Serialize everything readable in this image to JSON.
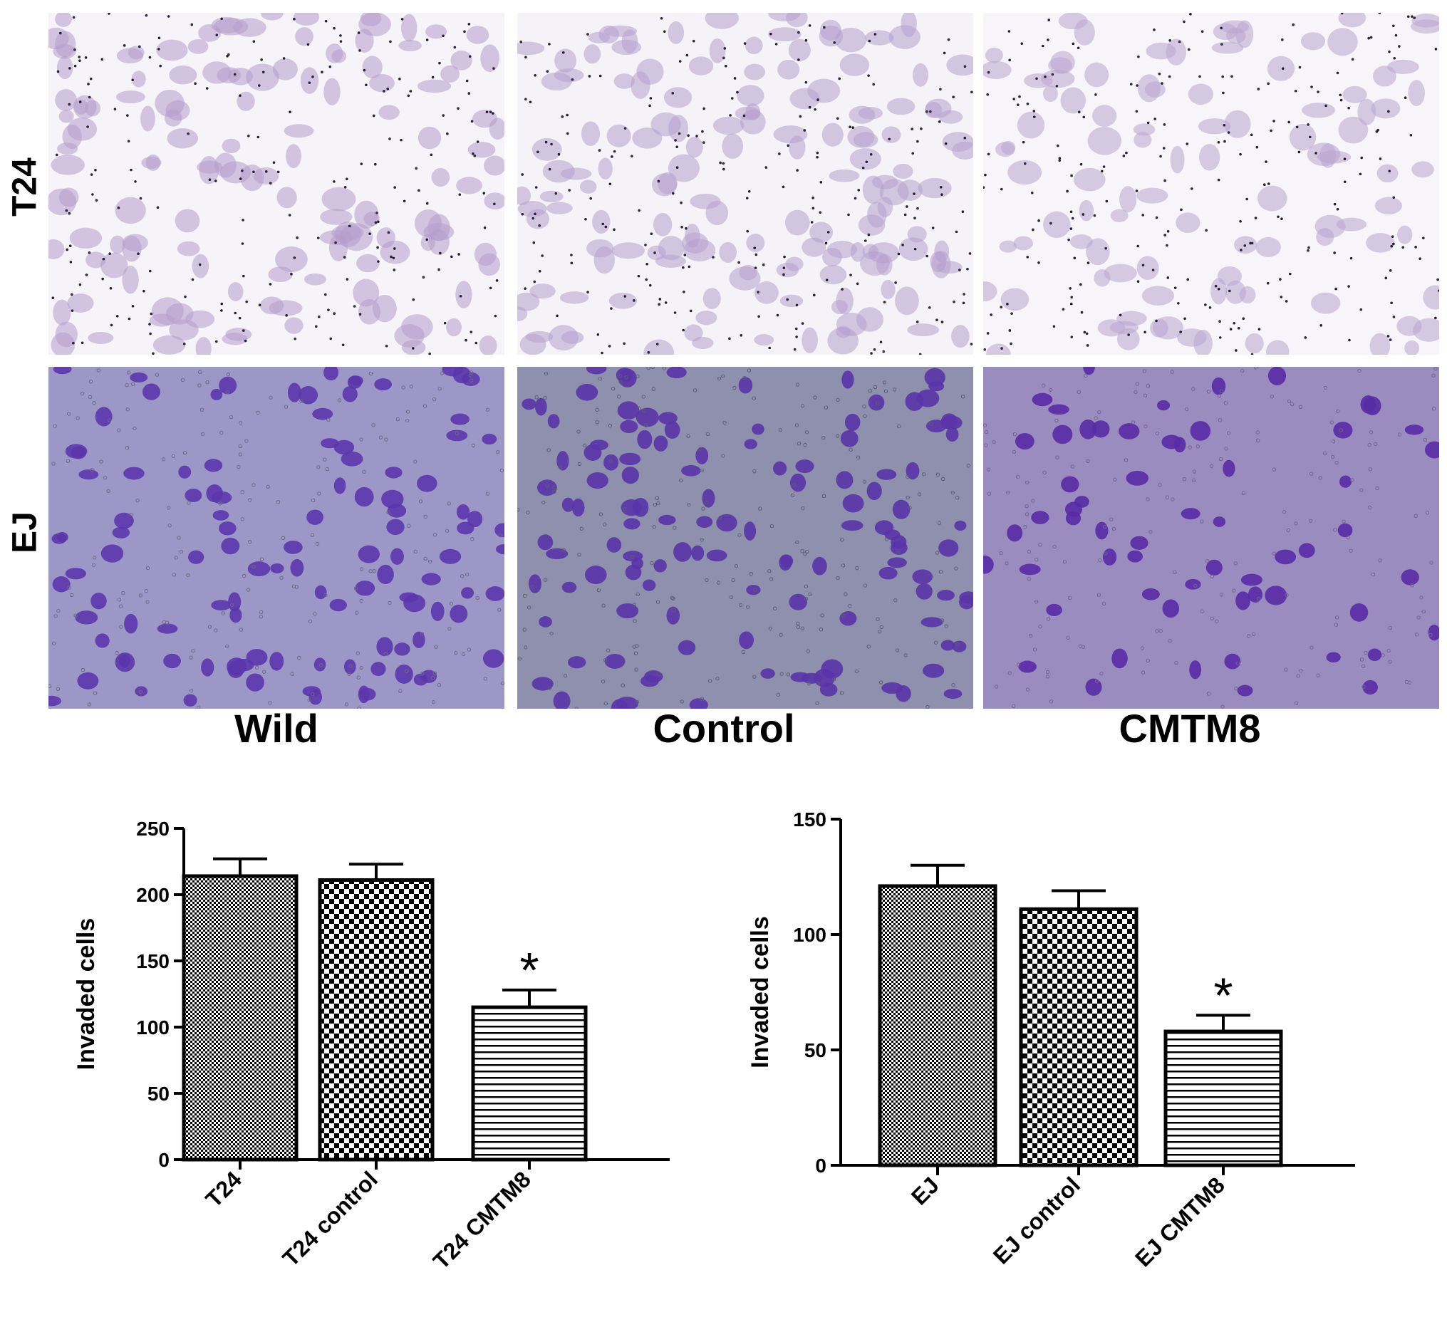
{
  "figure": {
    "row_labels": [
      "T24",
      "EJ"
    ],
    "col_labels": [
      "Wild",
      "Control",
      "CMTM8"
    ],
    "panels": [
      {
        "row": "T24",
        "col": "Wild",
        "bg": "#f6f4f8",
        "cell": "#b49ccc",
        "dot": "#2a2234",
        "cells": 140,
        "dots": 220
      },
      {
        "row": "T24",
        "col": "Control",
        "bg": "#f5f3f7",
        "cell": "#b59ecd",
        "dot": "#2a2234",
        "cells": 150,
        "dots": 230
      },
      {
        "row": "T24",
        "col": "CMTM8",
        "bg": "#f7f5f9",
        "cell": "#b9a4cf",
        "dot": "#2a2234",
        "cells": 100,
        "dots": 240
      },
      {
        "row": "EJ",
        "col": "Wild",
        "bg": "#9c97c6",
        "cell": "#5c36ac",
        "dot": "#6d6a86",
        "cells": 110,
        "dots": 200
      },
      {
        "row": "EJ",
        "col": "Control",
        "bg": "#8f90ad",
        "cell": "#5a34a8",
        "dot": "#5e5d72",
        "cells": 120,
        "dots": 210
      },
      {
        "row": "EJ",
        "col": "CMTM8",
        "bg": "#9b8cc0",
        "cell": "#5a2aa6",
        "dot": "#726490",
        "cells": 60,
        "dots": 190
      }
    ]
  },
  "chart_data": [
    {
      "type": "bar",
      "ylabel": "Invaded cells",
      "categories": [
        "T24",
        "T24 control",
        "T24 CMTM8"
      ],
      "values": [
        214,
        211,
        115
      ],
      "errors": [
        13,
        12,
        13
      ],
      "significance": [
        "",
        "",
        "*"
      ],
      "ylim": [
        0,
        250
      ],
      "yticks": [
        0,
        50,
        100,
        150,
        200,
        250
      ],
      "patterns": [
        "fine-dots",
        "checker",
        "h-lines"
      ]
    },
    {
      "type": "bar",
      "ylabel": "Invaded cells",
      "categories": [
        "EJ",
        "EJ control",
        "EJ CMTM8"
      ],
      "values": [
        121,
        111,
        58
      ],
      "errors": [
        9,
        8,
        7
      ],
      "significance": [
        "",
        "",
        "*"
      ],
      "ylim": [
        0,
        150
      ],
      "yticks": [
        0,
        50,
        100,
        150
      ],
      "patterns": [
        "fine-dots",
        "checker",
        "h-lines"
      ]
    }
  ]
}
